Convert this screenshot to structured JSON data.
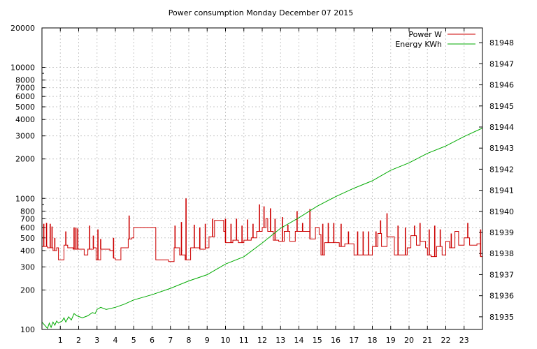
{
  "chart_data": {
    "type": "line",
    "title": "Power consumption Monday December 07 2015",
    "x": {
      "range": [
        0,
        24
      ],
      "ticks": [
        1,
        2,
        3,
        4,
        5,
        6,
        7,
        8,
        9,
        10,
        11,
        12,
        13,
        14,
        15,
        16,
        17,
        18,
        19,
        20,
        21,
        22,
        23
      ],
      "tick_labels": [
        "1",
        "2",
        "3",
        "4",
        "5",
        "6",
        "7",
        "8",
        "9",
        "10",
        "11",
        "12",
        "13",
        "14",
        "15",
        "16",
        "17",
        "18",
        "19",
        "20",
        "21",
        "22",
        "23"
      ],
      "label": ""
    },
    "y_left": {
      "scale": "log",
      "range": [
        100,
        20000
      ],
      "ticks": [
        100,
        200,
        300,
        400,
        500,
        600,
        700,
        800,
        1000,
        2000,
        3000,
        4000,
        5000,
        6000,
        7000,
        8000,
        10000,
        20000
      ],
      "tick_labels": [
        "100",
        "200",
        "300",
        "400",
        "500",
        "600",
        "700",
        "800",
        "1000",
        "2000",
        "3000",
        "4000",
        "5000",
        "6000",
        "7000",
        "8000",
        "10000",
        "20000"
      ],
      "label": ""
    },
    "y_right": {
      "scale": "linear",
      "range": [
        81934.4,
        81948.7
      ],
      "ticks": [
        81935,
        81936,
        81937,
        81938,
        81939,
        81940,
        81941,
        81942,
        81943,
        81944,
        81945,
        81946,
        81947,
        81948
      ],
      "tick_labels": [
        "81935",
        "81936",
        "81937",
        "81938",
        "81939",
        "81940",
        "81941",
        "81942",
        "81943",
        "81944",
        "81945",
        "81946",
        "81947",
        "81948"
      ],
      "label": ""
    },
    "grid": true,
    "legend_position": "top-right",
    "series": [
      {
        "name": "Power W",
        "axis": "left",
        "color": "#cc0000",
        "base": [
          [
            0.0,
            430
          ],
          [
            0.3,
            420
          ],
          [
            0.6,
            400
          ],
          [
            0.8,
            420
          ],
          [
            0.9,
            340
          ],
          [
            1.2,
            440
          ],
          [
            1.4,
            420
          ],
          [
            1.7,
            410
          ],
          [
            2.0,
            410
          ],
          [
            2.3,
            370
          ],
          [
            2.5,
            410
          ],
          [
            2.8,
            420
          ],
          [
            2.95,
            340
          ],
          [
            3.2,
            410
          ],
          [
            3.7,
            400
          ],
          [
            3.9,
            350
          ],
          [
            4.0,
            340
          ],
          [
            4.3,
            420
          ],
          [
            4.7,
            490
          ],
          [
            4.9,
            500
          ],
          [
            5.0,
            600
          ],
          [
            6.2,
            340
          ],
          [
            6.9,
            330
          ],
          [
            7.2,
            420
          ],
          [
            7.5,
            370
          ],
          [
            7.8,
            340
          ],
          [
            8.1,
            420
          ],
          [
            8.3,
            420
          ],
          [
            8.6,
            410
          ],
          [
            8.9,
            420
          ],
          [
            9.1,
            510
          ],
          [
            9.4,
            680
          ],
          [
            9.9,
            560
          ],
          [
            10.0,
            460
          ],
          [
            10.4,
            480
          ],
          [
            10.7,
            460
          ],
          [
            11.0,
            480
          ],
          [
            11.4,
            500
          ],
          [
            11.7,
            560
          ],
          [
            12.0,
            600
          ],
          [
            12.2,
            700
          ],
          [
            12.3,
            560
          ],
          [
            12.6,
            480
          ],
          [
            12.9,
            470
          ],
          [
            13.2,
            560
          ],
          [
            13.5,
            470
          ],
          [
            13.8,
            560
          ],
          [
            14.1,
            560
          ],
          [
            14.4,
            560
          ],
          [
            14.6,
            490
          ],
          [
            14.9,
            600
          ],
          [
            15.1,
            530
          ],
          [
            15.2,
            370
          ],
          [
            15.4,
            460
          ],
          [
            15.8,
            460
          ],
          [
            16.2,
            430
          ],
          [
            16.5,
            450
          ],
          [
            16.8,
            450
          ],
          [
            17.0,
            370
          ],
          [
            17.6,
            370
          ],
          [
            18.0,
            430
          ],
          [
            18.3,
            540
          ],
          [
            18.5,
            430
          ],
          [
            18.8,
            510
          ],
          [
            19.2,
            370
          ],
          [
            19.6,
            370
          ],
          [
            19.9,
            420
          ],
          [
            20.1,
            520
          ],
          [
            20.4,
            440
          ],
          [
            20.6,
            470
          ],
          [
            20.9,
            420
          ],
          [
            21.0,
            370
          ],
          [
            21.2,
            360
          ],
          [
            21.5,
            430
          ],
          [
            21.8,
            370
          ],
          [
            22.0,
            470
          ],
          [
            22.2,
            420
          ],
          [
            22.5,
            560
          ],
          [
            22.7,
            440
          ],
          [
            23.0,
            500
          ],
          [
            23.3,
            440
          ],
          [
            23.7,
            450
          ],
          [
            23.9,
            360
          ]
        ],
        "spikes": [
          [
            0.1,
            640
          ],
          [
            0.25,
            650
          ],
          [
            0.45,
            640
          ],
          [
            0.55,
            610
          ],
          [
            0.7,
            500
          ],
          [
            1.3,
            560
          ],
          [
            1.75,
            600
          ],
          [
            1.85,
            600
          ],
          [
            1.95,
            590
          ],
          [
            2.6,
            620
          ],
          [
            2.8,
            520
          ],
          [
            3.05,
            580
          ],
          [
            3.2,
            490
          ],
          [
            3.9,
            500
          ],
          [
            4.75,
            740
          ],
          [
            7.25,
            620
          ],
          [
            7.6,
            660
          ],
          [
            7.85,
            1000
          ],
          [
            8.3,
            630
          ],
          [
            8.6,
            600
          ],
          [
            8.9,
            640
          ],
          [
            9.3,
            700
          ],
          [
            10.0,
            700
          ],
          [
            10.3,
            640
          ],
          [
            10.6,
            700
          ],
          [
            10.9,
            620
          ],
          [
            11.2,
            690
          ],
          [
            11.5,
            640
          ],
          [
            11.85,
            900
          ],
          [
            12.1,
            870
          ],
          [
            12.45,
            840
          ],
          [
            12.7,
            700
          ],
          [
            13.1,
            720
          ],
          [
            13.4,
            630
          ],
          [
            13.9,
            800
          ],
          [
            14.2,
            650
          ],
          [
            14.6,
            830
          ],
          [
            15.3,
            640
          ],
          [
            15.6,
            650
          ],
          [
            15.9,
            650
          ],
          [
            16.3,
            640
          ],
          [
            16.7,
            560
          ],
          [
            17.2,
            560
          ],
          [
            17.5,
            560
          ],
          [
            17.8,
            560
          ],
          [
            18.2,
            560
          ],
          [
            18.45,
            680
          ],
          [
            18.8,
            770
          ],
          [
            19.4,
            620
          ],
          [
            19.8,
            600
          ],
          [
            20.3,
            620
          ],
          [
            20.6,
            650
          ],
          [
            21.1,
            580
          ],
          [
            21.4,
            620
          ],
          [
            21.7,
            580
          ],
          [
            22.3,
            540
          ],
          [
            22.6,
            560
          ],
          [
            23.2,
            650
          ],
          [
            23.9,
            580
          ]
        ]
      },
      {
        "name": "Energy KWh",
        "axis": "right",
        "color": "#00aa00",
        "values": [
          [
            0.0,
            81934.75
          ],
          [
            0.3,
            81934.45
          ],
          [
            0.4,
            81934.7
          ],
          [
            0.5,
            81934.5
          ],
          [
            0.6,
            81934.75
          ],
          [
            0.7,
            81934.6
          ],
          [
            0.8,
            81934.8
          ],
          [
            0.9,
            81934.7
          ],
          [
            1.1,
            81934.8
          ],
          [
            1.2,
            81934.95
          ],
          [
            1.3,
            81934.75
          ],
          [
            1.45,
            81935.0
          ],
          [
            1.6,
            81934.85
          ],
          [
            1.75,
            81935.15
          ],
          [
            1.9,
            81935.05
          ],
          [
            2.2,
            81934.95
          ],
          [
            2.5,
            81935.05
          ],
          [
            2.75,
            81935.2
          ],
          [
            2.9,
            81935.15
          ],
          [
            3.0,
            81935.35
          ],
          [
            3.2,
            81935.45
          ],
          [
            3.5,
            81935.35
          ],
          [
            4.0,
            81935.45
          ],
          [
            4.5,
            81935.6
          ],
          [
            5.0,
            81935.8
          ],
          [
            6.0,
            81936.05
          ],
          [
            7.0,
            81936.35
          ],
          [
            8.0,
            81936.7
          ],
          [
            9.0,
            81937.0
          ],
          [
            10.0,
            81937.5
          ],
          [
            11.0,
            81937.85
          ],
          [
            12.0,
            81938.5
          ],
          [
            13.0,
            81939.2
          ],
          [
            14.0,
            81939.7
          ],
          [
            15.0,
            81940.25
          ],
          [
            16.0,
            81940.7
          ],
          [
            17.0,
            81941.1
          ],
          [
            18.0,
            81941.45
          ],
          [
            19.0,
            81941.95
          ],
          [
            20.0,
            81942.3
          ],
          [
            21.0,
            81942.75
          ],
          [
            22.0,
            81943.1
          ],
          [
            23.0,
            81943.55
          ],
          [
            24.0,
            81943.95
          ]
        ]
      }
    ]
  }
}
